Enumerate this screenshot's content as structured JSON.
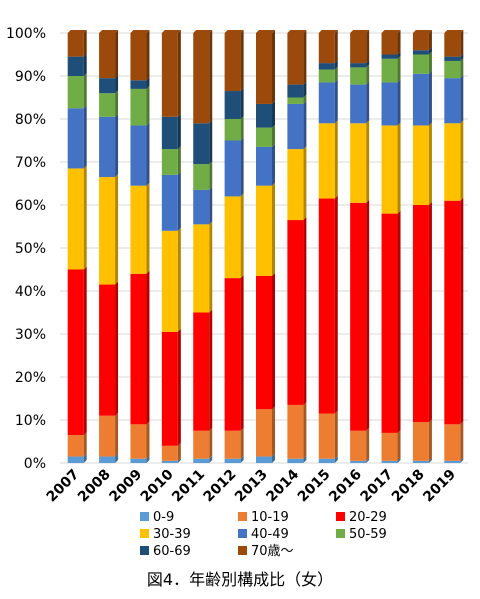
{
  "chart_data": {
    "type": "bar",
    "stacked": true,
    "percent": true,
    "title": "図4．年齢別構成比（女）",
    "categories": [
      "2007",
      "2008",
      "2009",
      "2010",
      "2011",
      "2012",
      "2013",
      "2014",
      "2015",
      "2016",
      "2017",
      "2018",
      "2019"
    ],
    "yticks": [
      "0%",
      "10%",
      "20%",
      "30%",
      "40%",
      "50%",
      "60%",
      "70%",
      "80%",
      "90%",
      "100%"
    ],
    "ylim": [
      0,
      100
    ],
    "legend_position": "bottom",
    "series": [
      {
        "name": "0-9",
        "color": "#5b9bd5",
        "values": [
          1.5,
          1.5,
          1.0,
          0.5,
          1.0,
          1.0,
          1.5,
          1.0,
          1.0,
          0.5,
          0.5,
          0.5,
          0.5
        ]
      },
      {
        "name": "10-19",
        "color": "#ed7d31",
        "values": [
          5.0,
          9.5,
          8.0,
          3.5,
          6.5,
          6.5,
          11.0,
          12.5,
          10.5,
          7.0,
          6.5,
          9.0,
          8.5
        ]
      },
      {
        "name": "20-29",
        "color": "#ff0000",
        "values": [
          38.5,
          30.5,
          35.0,
          26.5,
          27.5,
          35.5,
          31.0,
          43.0,
          50.0,
          53.0,
          51.0,
          50.5,
          52.0
        ]
      },
      {
        "name": "30-39",
        "color": "#ffc000",
        "values": [
          23.5,
          25.0,
          20.5,
          23.5,
          20.5,
          19.0,
          21.0,
          16.5,
          17.5,
          18.5,
          20.5,
          18.5,
          18.0
        ]
      },
      {
        "name": "40-49",
        "color": "#4472c4",
        "values": [
          14.0,
          14.0,
          14.0,
          13.0,
          8.0,
          13.0,
          9.0,
          10.5,
          9.5,
          9.0,
          10.0,
          12.0,
          10.5
        ]
      },
      {
        "name": "50-59",
        "color": "#70ad47",
        "values": [
          7.5,
          5.5,
          8.5,
          6.0,
          6.0,
          5.0,
          4.5,
          1.5,
          3.0,
          4.0,
          5.5,
          4.5,
          4.0
        ]
      },
      {
        "name": "60-69",
        "color": "#1f4e79",
        "values": [
          4.5,
          3.5,
          2.0,
          7.5,
          9.5,
          6.5,
          5.5,
          3.0,
          1.5,
          1.0,
          1.0,
          1.0,
          1.0
        ]
      },
      {
        "name": "70歳～",
        "color": "#9c4a0b",
        "values": [
          5.5,
          10.5,
          11.0,
          19.5,
          21.0,
          13.5,
          16.5,
          12.0,
          7.0,
          7.0,
          5.0,
          4.0,
          5.5
        ]
      }
    ]
  }
}
